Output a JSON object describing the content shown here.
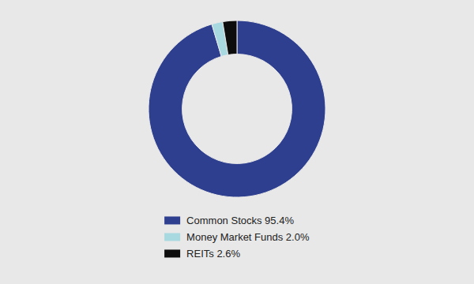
{
  "chart_data": {
    "type": "donut",
    "categories": [
      "Common Stocks 95.4%",
      "Money Market Funds 2.0%",
      "REITs 2.6%"
    ],
    "values": [
      95.4,
      2.0,
      2.6
    ],
    "colors": [
      "#2e3f8f",
      "#a8d8e0",
      "#0d0d0d"
    ],
    "legend": "bottom"
  }
}
